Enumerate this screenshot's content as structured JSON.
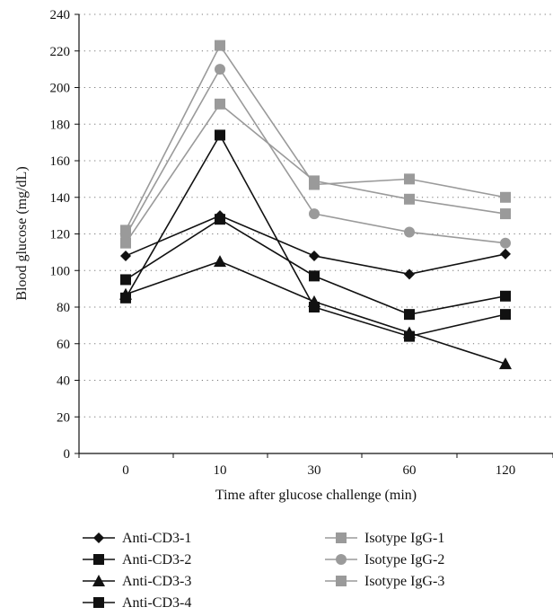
{
  "chart_data": {
    "type": "line",
    "title": "",
    "xlabel": "Time after glucose challenge (min)",
    "ylabel": "Blood glucose (mg/dL)",
    "categories": [
      "0",
      "10",
      "30",
      "60",
      "120"
    ],
    "ylim": [
      0,
      240
    ],
    "yticks": [
      0,
      20,
      40,
      60,
      80,
      100,
      120,
      140,
      160,
      180,
      200,
      220,
      240
    ],
    "grid": "horizontal dotted",
    "legend_position": "bottom",
    "series": [
      {
        "name": "Anti-CD3-1",
        "values": [
          108,
          130,
          108,
          98,
          109
        ],
        "color": "#111111",
        "marker": "diamond"
      },
      {
        "name": "Anti-CD3-2",
        "values": [
          95,
          128,
          97,
          76,
          86
        ],
        "color": "#111111",
        "marker": "square"
      },
      {
        "name": "Anti-CD3-3",
        "values": [
          87,
          105,
          83,
          66,
          49
        ],
        "color": "#111111",
        "marker": "triangle"
      },
      {
        "name": "Anti-CD3-4",
        "values": [
          85,
          174,
          80,
          64,
          76
        ],
        "color": "#111111",
        "marker": "square"
      },
      {
        "name": "Isotype IgG-1",
        "values": [
          122,
          223,
          147,
          150,
          140
        ],
        "color": "#9a9a9a",
        "marker": "square"
      },
      {
        "name": "Isotype IgG-2",
        "values": [
          119,
          210,
          131,
          121,
          115
        ],
        "color": "#9a9a9a",
        "marker": "circle"
      },
      {
        "name": "Isotype IgG-3",
        "values": [
          115,
          191,
          149,
          139,
          131
        ],
        "color": "#9a9a9a",
        "marker": "square"
      }
    ]
  }
}
